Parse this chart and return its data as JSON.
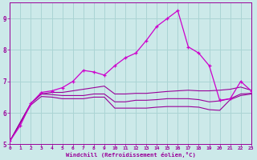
{
  "bg_color": "#cce9e9",
  "grid_color": "#aad4d4",
  "line_color": "#990099",
  "line_color_bright": "#cc00cc",
  "xlabel": "Windchill (Refroidissement éolien,°C)",
  "xlim": [
    0,
    23
  ],
  "ylim": [
    5.0,
    9.5
  ],
  "yticks": [
    5,
    6,
    7,
    8,
    9
  ],
  "xticks": [
    0,
    1,
    2,
    3,
    4,
    5,
    6,
    7,
    8,
    9,
    10,
    11,
    12,
    13,
    14,
    15,
    16,
    17,
    18,
    19,
    20,
    21,
    22,
    23
  ],
  "s1_x": [
    0,
    1,
    2,
    3,
    4,
    5,
    6,
    7,
    8,
    9,
    10,
    11,
    12,
    13,
    14,
    15,
    16,
    17,
    18,
    19,
    20,
    21,
    22,
    23
  ],
  "s1_y": [
    5.1,
    5.6,
    6.3,
    6.65,
    6.7,
    6.8,
    7.0,
    7.35,
    7.3,
    7.2,
    7.5,
    7.75,
    7.9,
    8.3,
    8.75,
    9.0,
    9.25,
    8.1,
    7.9,
    7.5,
    6.4,
    6.45,
    7.0,
    6.7
  ],
  "s2_x": [
    0,
    2,
    3,
    4,
    5,
    6,
    7,
    8,
    9,
    10,
    11,
    12,
    13,
    14,
    15,
    16,
    17,
    18,
    19,
    20,
    21,
    22,
    23
  ],
  "s2_y": [
    5.1,
    6.3,
    6.6,
    6.65,
    6.65,
    6.7,
    6.75,
    6.8,
    6.85,
    6.6,
    6.6,
    6.62,
    6.62,
    6.65,
    6.68,
    6.7,
    6.72,
    6.7,
    6.7,
    6.72,
    6.75,
    6.82,
    6.72
  ],
  "s3_x": [
    0,
    2,
    3,
    4,
    5,
    6,
    7,
    8,
    9,
    10,
    11,
    12,
    13,
    14,
    15,
    16,
    17,
    18,
    19,
    20,
    21,
    22,
    23
  ],
  "s3_y": [
    5.1,
    6.3,
    6.6,
    6.58,
    6.55,
    6.55,
    6.55,
    6.6,
    6.6,
    6.35,
    6.35,
    6.4,
    6.4,
    6.42,
    6.45,
    6.45,
    6.45,
    6.42,
    6.35,
    6.38,
    6.45,
    6.6,
    6.62
  ],
  "s4_x": [
    0,
    2,
    3,
    4,
    5,
    6,
    7,
    8,
    9,
    10,
    11,
    12,
    13,
    14,
    15,
    16,
    17,
    18,
    19,
    20,
    21,
    22,
    23
  ],
  "s4_y": [
    5.1,
    6.25,
    6.52,
    6.5,
    6.45,
    6.45,
    6.45,
    6.5,
    6.5,
    6.15,
    6.15,
    6.15,
    6.15,
    6.18,
    6.2,
    6.2,
    6.2,
    6.18,
    6.1,
    6.08,
    6.42,
    6.55,
    6.6
  ]
}
